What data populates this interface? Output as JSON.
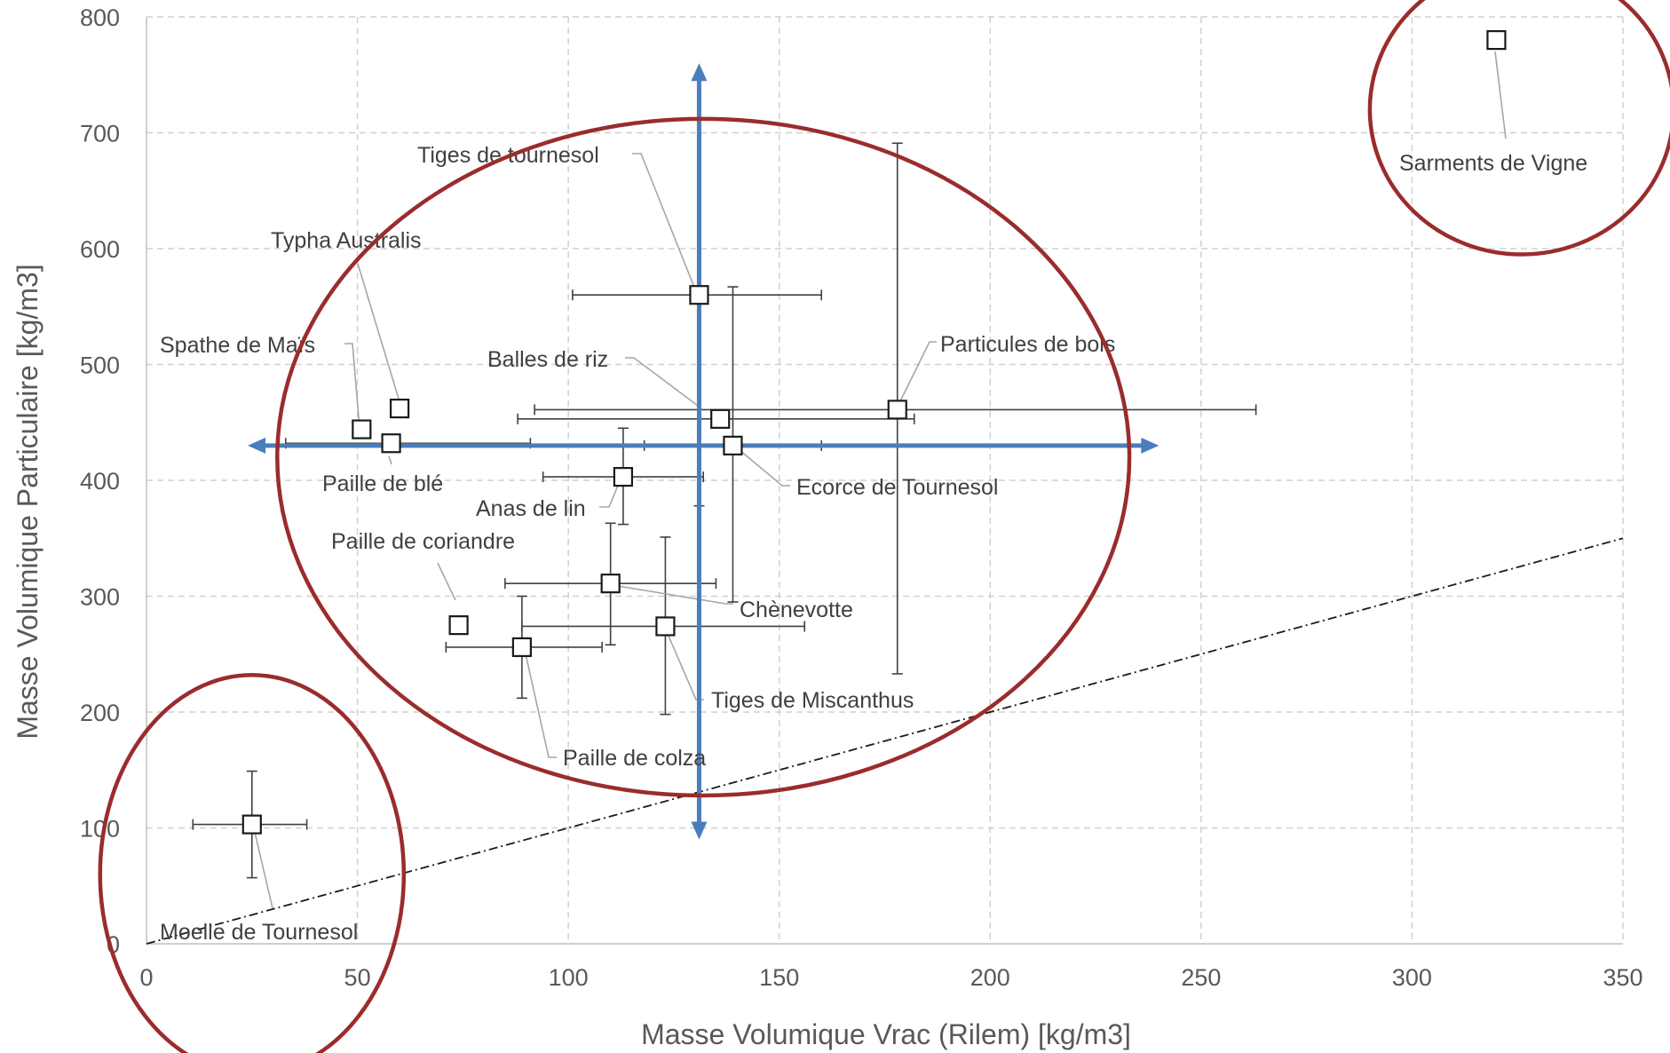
{
  "chart_data": {
    "type": "scatter",
    "xlabel": "Masse Volumique Vrac (Rilem) [kg/m3]",
    "ylabel": "Masse Volumique Particulaire [kg/m3]",
    "xlim": [
      0,
      350
    ],
    "ylim": [
      0,
      800
    ],
    "xticks": [
      0,
      50,
      100,
      150,
      200,
      250,
      300,
      350
    ],
    "yticks": [
      0,
      100,
      200,
      300,
      400,
      500,
      600,
      700,
      800
    ],
    "grid": true,
    "marker": "square",
    "points": [
      {
        "label": "Tiges de tournesol",
        "x": 131,
        "y": 560,
        "xerr": [
          101,
          160
        ],
        "yerr": [
          378,
          560
        ]
      },
      {
        "label": "Typha Australis",
        "x": 60,
        "y": 462,
        "xerr": null,
        "yerr": null
      },
      {
        "label": "Spathe de Maïs",
        "x": 51,
        "y": 444,
        "xerr": null,
        "yerr": null
      },
      {
        "label": "Paille de blé",
        "x": 58,
        "y": 432,
        "xerr": [
          33,
          91
        ],
        "yerr": null
      },
      {
        "label": "Balles de riz",
        "x": 136,
        "y": 453,
        "xerr": [
          88,
          182
        ],
        "yerr": null
      },
      {
        "label": "Particules de bois",
        "x": 178,
        "y": 461,
        "xerr": [
          92,
          263
        ],
        "yerr": [
          233,
          691
        ]
      },
      {
        "label": "Ecorce de Tournesol",
        "x": 139,
        "y": 430,
        "xerr": [
          118,
          160
        ],
        "yerr": [
          295,
          567
        ]
      },
      {
        "label": "Anas de lin",
        "x": 113,
        "y": 403,
        "xerr": [
          94,
          132
        ],
        "yerr": [
          362,
          445
        ]
      },
      {
        "label": "Paille de coriandre",
        "x": 74,
        "y": 275,
        "xerr": null,
        "yerr": null
      },
      {
        "label": "Chènevotte",
        "x": 110,
        "y": 311,
        "xerr": [
          85,
          135
        ],
        "yerr": [
          258,
          363
        ]
      },
      {
        "label": "Tiges de Miscanthus",
        "x": 123,
        "y": 274,
        "xerr": [
          89,
          156
        ],
        "yerr": [
          198,
          351
        ]
      },
      {
        "label": "Paille de colza",
        "x": 89,
        "y": 256,
        "xerr": [
          71,
          108
        ],
        "yerr": [
          212,
          300
        ]
      },
      {
        "label": "Moelle de Tournesol",
        "x": 25,
        "y": 103,
        "xerr": [
          11,
          38
        ],
        "yerr": [
          57,
          149
        ]
      },
      {
        "label": "Sarments de Vigne",
        "x": 320,
        "y": 780,
        "xerr": null,
        "yerr": null
      }
    ],
    "reference_line": {
      "style": "dash-dot",
      "from": [
        0,
        0
      ],
      "to": [
        350,
        350
      ]
    },
    "arrows": [
      {
        "orientation": "horizontal",
        "y": 430,
        "from": 24,
        "to": 240,
        "color": "#4a7ebb"
      },
      {
        "orientation": "vertical",
        "x": 131,
        "from": 90,
        "to": 760,
        "color": "#4a7ebb"
      }
    ],
    "ellipses": [
      {
        "cx": 132,
        "cy": 420,
        "rx": 101,
        "ry": 292,
        "color": "#9b2c2c"
      },
      {
        "cx": 25,
        "cy": 60,
        "rx": 36,
        "ry": 172,
        "color": "#9b2c2c"
      },
      {
        "cx": 326,
        "cy": 720,
        "rx": 36,
        "ry": 125,
        "color": "#9b2c2c"
      }
    ]
  }
}
